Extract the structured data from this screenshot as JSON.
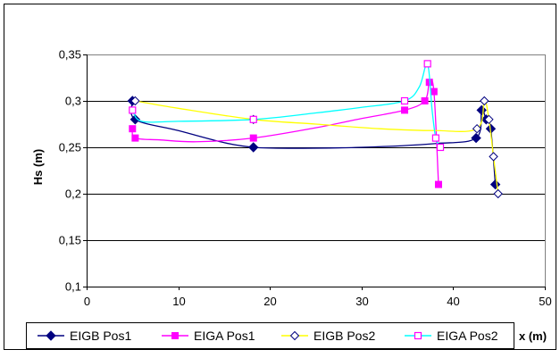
{
  "chart_data": {
    "type": "scatter",
    "title": "",
    "xlabel": "x (m)",
    "ylabel": "Hs (m)",
    "xlim": [
      0,
      50
    ],
    "ylim": [
      0.1,
      0.35
    ],
    "x_ticks": [
      0,
      10,
      20,
      30,
      40,
      50
    ],
    "x_tick_labels": [
      "0",
      "10",
      "20",
      "30",
      "40",
      "50"
    ],
    "y_ticks": [
      0.1,
      0.15,
      0.2,
      0.25,
      0.3,
      0.35
    ],
    "y_tick_labels": [
      "0,1",
      "0,15",
      "0,2",
      "0,25",
      "0,3",
      "0,35"
    ],
    "grid": "horizontal",
    "legend_position": "bottom",
    "series": [
      {
        "name": "EIGB Pos1",
        "color": "#000080",
        "marker": "diamond-filled",
        "points": [
          [
            5.0,
            0.3
          ],
          [
            5.3,
            0.28
          ],
          [
            18.2,
            0.25
          ],
          [
            42.5,
            0.26
          ],
          [
            43.1,
            0.29
          ],
          [
            43.6,
            0.28
          ],
          [
            44.1,
            0.27
          ],
          [
            44.6,
            0.21
          ]
        ],
        "curve": [
          [
            5.0,
            0.3
          ],
          [
            5.3,
            0.28
          ],
          [
            10,
            0.268
          ],
          [
            15,
            0.255
          ],
          [
            18.2,
            0.25
          ],
          [
            22,
            0.249
          ],
          [
            30,
            0.25
          ],
          [
            38,
            0.254
          ],
          [
            42.5,
            0.26
          ],
          [
            43.1,
            0.29
          ],
          [
            43.6,
            0.28
          ],
          [
            44.1,
            0.27
          ],
          [
            44.6,
            0.21
          ]
        ]
      },
      {
        "name": "EIGA Pos1",
        "color": "#FF00FF",
        "marker": "square-filled",
        "points": [
          [
            5.0,
            0.27
          ],
          [
            5.3,
            0.26
          ],
          [
            18.2,
            0.26
          ],
          [
            34.7,
            0.29
          ],
          [
            36.9,
            0.3
          ],
          [
            37.4,
            0.32
          ],
          [
            37.9,
            0.31
          ],
          [
            38.4,
            0.21
          ]
        ],
        "curve": [
          [
            5.0,
            0.27
          ],
          [
            5.3,
            0.26
          ],
          [
            8,
            0.258
          ],
          [
            12,
            0.256
          ],
          [
            18.2,
            0.26
          ],
          [
            25,
            0.271
          ],
          [
            30,
            0.281
          ],
          [
            34.7,
            0.29
          ],
          [
            36.9,
            0.3
          ],
          [
            37.4,
            0.32
          ],
          [
            37.9,
            0.31
          ],
          [
            38.4,
            0.21
          ]
        ]
      },
      {
        "name": "EIGB Pos2",
        "color": "#FFFF00",
        "marker": "diamond-open",
        "points": [
          [
            5.3,
            0.3
          ],
          [
            18.2,
            0.28
          ],
          [
            42.6,
            0.27
          ],
          [
            43.4,
            0.3
          ],
          [
            43.9,
            0.28
          ],
          [
            44.4,
            0.24
          ],
          [
            44.9,
            0.2
          ]
        ],
        "curve": [
          [
            5.3,
            0.3
          ],
          [
            10,
            0.292
          ],
          [
            18.2,
            0.28
          ],
          [
            25,
            0.275
          ],
          [
            32,
            0.27
          ],
          [
            38,
            0.268
          ],
          [
            42.6,
            0.27
          ],
          [
            43.4,
            0.3
          ],
          [
            43.9,
            0.28
          ],
          [
            44.4,
            0.24
          ],
          [
            44.9,
            0.2
          ]
        ]
      },
      {
        "name": "EIGA Pos2",
        "color": "#00FFFF",
        "marker": "square-open",
        "points": [
          [
            5.0,
            0.29
          ],
          [
            18.2,
            0.28
          ],
          [
            34.7,
            0.3
          ],
          [
            37.2,
            0.34
          ],
          [
            38.1,
            0.26
          ],
          [
            38.6,
            0.25
          ]
        ],
        "curve": [
          [
            5.0,
            0.29
          ],
          [
            6,
            0.278
          ],
          [
            10,
            0.278
          ],
          [
            18.2,
            0.28
          ],
          [
            25,
            0.287
          ],
          [
            30,
            0.293
          ],
          [
            34.7,
            0.3
          ],
          [
            36.3,
            0.315
          ],
          [
            37.2,
            0.34
          ],
          [
            37.7,
            0.29
          ],
          [
            38.1,
            0.26
          ],
          [
            38.6,
            0.25
          ]
        ]
      }
    ]
  }
}
